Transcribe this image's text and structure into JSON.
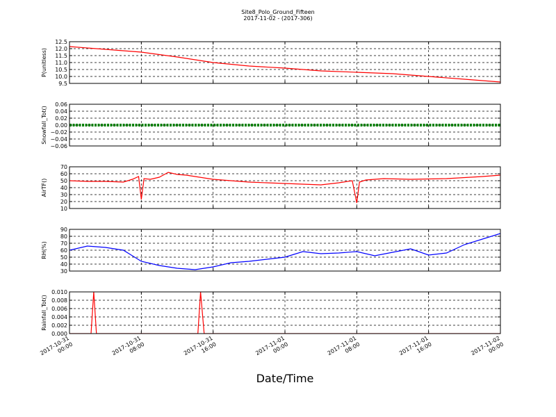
{
  "figure": {
    "title": "Site8_Polo_Ground_Fifteen",
    "subtitle": "2017-11-02 - (2017-306)",
    "xlabel": "Date/Time"
  },
  "chart_data": [
    {
      "type": "line",
      "ylabel": "P(unitless)",
      "ylim": [
        9.5,
        12.5
      ],
      "yticks": [
        9.5,
        10.0,
        10.5,
        11.0,
        11.5,
        12.0,
        12.5
      ],
      "ytick_labels": [
        "9.5",
        "10.0",
        "10.5",
        "11.0",
        "11.5",
        "12.0",
        "12.5"
      ],
      "color": "#ff0000",
      "x": [
        0,
        4,
        8,
        12,
        16,
        20,
        24,
        28,
        32,
        36,
        40,
        44,
        48
      ],
      "values": [
        12.15,
        11.95,
        11.75,
        11.4,
        11.0,
        10.75,
        10.6,
        10.4,
        10.3,
        10.2,
        10.0,
        9.8,
        9.6
      ]
    },
    {
      "type": "line",
      "ylabel": "Snowfall_Tot()",
      "ylim": [
        -0.06,
        0.06
      ],
      "yticks": [
        -0.06,
        -0.04,
        -0.02,
        0.0,
        0.02,
        0.04,
        0.06
      ],
      "ytick_labels": [
        "−0.06",
        "−0.04",
        "−0.02",
        "0.00",
        "0.02",
        "0.04",
        "0.06"
      ],
      "color": "#008000",
      "x": [
        0,
        8,
        16,
        24,
        32,
        40,
        48
      ],
      "values": [
        0,
        0,
        0,
        0,
        0,
        0,
        0
      ]
    },
    {
      "type": "line",
      "ylabel": "AirTF()",
      "ylim": [
        10,
        70
      ],
      "yticks": [
        10,
        20,
        30,
        40,
        50,
        60,
        70
      ],
      "ytick_labels": [
        "10",
        "20",
        "30",
        "40",
        "50",
        "60",
        "70"
      ],
      "color": "#ff0000",
      "x": [
        0,
        2,
        4,
        6,
        7,
        7.7,
        8,
        8.3,
        9,
        10,
        11,
        12,
        13,
        14,
        16,
        20,
        24,
        28,
        30,
        31.5,
        32,
        32.3,
        33,
        35,
        38,
        42,
        46,
        48
      ],
      "values": [
        50,
        49,
        49,
        48,
        52,
        56,
        23,
        53,
        52,
        55,
        62,
        59,
        58,
        56,
        52,
        48,
        46,
        44,
        47,
        50,
        18,
        48,
        51,
        53,
        52,
        53,
        56,
        58
      ]
    },
    {
      "type": "line",
      "ylabel": "RH(%)",
      "ylim": [
        30,
        90
      ],
      "yticks": [
        30,
        40,
        50,
        60,
        70,
        80,
        90
      ],
      "ytick_labels": [
        "30",
        "40",
        "50",
        "60",
        "70",
        "80",
        "90"
      ],
      "color": "#0000ff",
      "x": [
        0,
        2,
        4,
        6,
        8,
        10,
        12,
        14,
        16,
        18,
        20,
        22,
        24,
        26,
        28,
        30,
        32,
        34,
        36,
        38,
        40,
        42,
        44,
        46,
        48
      ],
      "values": [
        60,
        66,
        64,
        60,
        44,
        38,
        34,
        32,
        36,
        42,
        44,
        47,
        50,
        58,
        55,
        56,
        58,
        52,
        57,
        62,
        53,
        56,
        68,
        76,
        84
      ]
    },
    {
      "type": "line",
      "ylabel": "Rainfall_Tot()",
      "ylim": [
        0,
        0.01
      ],
      "yticks": [
        0,
        0.002,
        0.004,
        0.006,
        0.008,
        0.01
      ],
      "ytick_labels": [
        "0.000",
        "0.002",
        "0.004",
        "0.006",
        "0.008",
        "0.010"
      ],
      "color": "#ff0000",
      "x": [
        0,
        2.4,
        2.7,
        3.0,
        14.3,
        14.6,
        15.0,
        48
      ],
      "values": [
        0,
        0,
        0.01,
        0,
        0,
        0.01,
        0,
        0
      ]
    }
  ],
  "xaxis": {
    "range": [
      0,
      48
    ],
    "ticks": [
      0,
      8,
      16,
      24,
      32,
      40,
      48
    ],
    "tick_labels": [
      [
        "2017-10-31",
        "00:00"
      ],
      [
        "2017-10-31",
        "08:00"
      ],
      [
        "2017-10-31",
        "16:00"
      ],
      [
        "2017-11-01",
        "00:00"
      ],
      [
        "2017-11-01",
        "08:00"
      ],
      [
        "2017-11-01",
        "16:00"
      ],
      [
        "2017-11-02",
        "00:00"
      ]
    ]
  }
}
